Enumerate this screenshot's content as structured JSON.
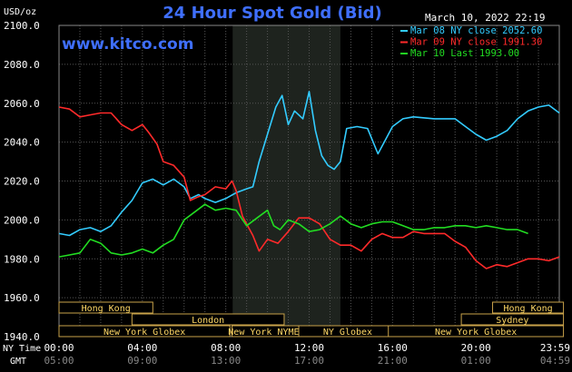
{
  "header": {
    "title": "24 Hour Spot Gold (Bid)",
    "unit": "USD/oz",
    "timestamp": "March 10, 2022 22:19",
    "site": "www.kitco.com"
  },
  "colors": {
    "background": "#000000",
    "plot_bg": "#000000",
    "grid": "#555555",
    "axis_text": "#ffffff",
    "title": "#3f6fff",
    "site": "#3f6fff",
    "highlight": "#1e231e",
    "session_box": "#c8a24a",
    "session_text": "#ffd866"
  },
  "time_labels": {
    "ny_label": "NY Time",
    "gmt_label": "GMT",
    "ny_ticks": [
      "00:00",
      "04:00",
      "08:00",
      "12:00",
      "16:00",
      "20:00",
      "23:59"
    ],
    "gmt_ticks": [
      "05:00",
      "09:00",
      "13:00",
      "17:00",
      "21:00",
      "01:00",
      "04:59"
    ]
  },
  "sessions": [
    {
      "name": "Hong Kong",
      "row": 0
    },
    {
      "name": "Hong Kong",
      "row": 0
    },
    {
      "name": "London",
      "row": 1
    },
    {
      "name": "Sydney",
      "row": 1
    },
    {
      "name": "New York Globex",
      "row": 2
    },
    {
      "name": "New York NYMEX",
      "row": 2
    },
    {
      "name": "NY Globex",
      "row": 2
    },
    {
      "name": "New York Globex",
      "row": 2
    }
  ],
  "chart_data": {
    "type": "line",
    "title": "24 Hour Spot Gold (Bid)",
    "ylabel": "USD/oz",
    "xlabel": "NY Time",
    "xlim_hours": [
      0,
      24
    ],
    "ylim": [
      1940,
      2100
    ],
    "yticks": [
      "2100.0",
      "2080.0",
      "2060.0",
      "2040.0",
      "2020.0",
      "2000.0",
      "1980.0",
      "1960.0",
      "1940.0"
    ],
    "grid": true,
    "legend_position": "top-right",
    "series": [
      {
        "name": "Mar 08 NY close 2052.60",
        "color": "#33ccff",
        "points": [
          [
            0,
            1993
          ],
          [
            0.5,
            1992
          ],
          [
            1,
            1995
          ],
          [
            1.5,
            1996
          ],
          [
            2,
            1994
          ],
          [
            2.5,
            1997
          ],
          [
            3,
            2004
          ],
          [
            3.5,
            2010
          ],
          [
            4,
            2019
          ],
          [
            4.5,
            2021
          ],
          [
            5,
            2018
          ],
          [
            5.5,
            2021
          ],
          [
            6,
            2017
          ],
          [
            6.3,
            2011
          ],
          [
            6.7,
            2013
          ],
          [
            7,
            2011
          ],
          [
            7.5,
            2009
          ],
          [
            8,
            2011
          ],
          [
            8.5,
            2014
          ],
          [
            9,
            2016
          ],
          [
            9.3,
            2017
          ],
          [
            9.6,
            2030
          ],
          [
            10,
            2044
          ],
          [
            10.4,
            2058
          ],
          [
            10.7,
            2064
          ],
          [
            11,
            2049
          ],
          [
            11.3,
            2056
          ],
          [
            11.7,
            2052
          ],
          [
            12,
            2066
          ],
          [
            12.3,
            2046
          ],
          [
            12.6,
            2033
          ],
          [
            12.9,
            2028
          ],
          [
            13.2,
            2026
          ],
          [
            13.5,
            2030
          ],
          [
            13.8,
            2047
          ],
          [
            14.3,
            2048
          ],
          [
            14.8,
            2047
          ],
          [
            15.3,
            2034
          ],
          [
            15.6,
            2040
          ],
          [
            16,
            2048
          ],
          [
            16.5,
            2052
          ],
          [
            17,
            2053
          ],
          [
            18,
            2052
          ],
          [
            19,
            2052
          ],
          [
            19.5,
            2048
          ],
          [
            20,
            2044
          ],
          [
            20.5,
            2041
          ],
          [
            21,
            2043
          ],
          [
            21.5,
            2046
          ],
          [
            22,
            2052
          ],
          [
            22.5,
            2056
          ],
          [
            23,
            2058
          ],
          [
            23.5,
            2059
          ],
          [
            24,
            2055
          ]
        ]
      },
      {
        "name": "Mar 09 NY close 1991.30",
        "color": "#ff2a2a",
        "points": [
          [
            0,
            2058
          ],
          [
            0.5,
            2057
          ],
          [
            1,
            2053
          ],
          [
            1.5,
            2054
          ],
          [
            2,
            2055
          ],
          [
            2.5,
            2055
          ],
          [
            3,
            2049
          ],
          [
            3.5,
            2046
          ],
          [
            4,
            2049
          ],
          [
            4.3,
            2045
          ],
          [
            4.7,
            2039
          ],
          [
            5,
            2030
          ],
          [
            5.5,
            2028
          ],
          [
            6,
            2022
          ],
          [
            6.3,
            2010
          ],
          [
            6.7,
            2012
          ],
          [
            7,
            2013
          ],
          [
            7.5,
            2017
          ],
          [
            8,
            2016
          ],
          [
            8.3,
            2020
          ],
          [
            8.5,
            2015
          ],
          [
            8.8,
            2002
          ],
          [
            9,
            1998
          ],
          [
            9.3,
            1992
          ],
          [
            9.6,
            1984
          ],
          [
            10,
            1990
          ],
          [
            10.5,
            1988
          ],
          [
            11,
            1994
          ],
          [
            11.5,
            2001
          ],
          [
            12,
            2001
          ],
          [
            12.5,
            1998
          ],
          [
            13,
            1990
          ],
          [
            13.5,
            1987
          ],
          [
            14,
            1987
          ],
          [
            14.5,
            1984
          ],
          [
            15,
            1990
          ],
          [
            15.5,
            1993
          ],
          [
            16,
            1991
          ],
          [
            16.5,
            1991
          ],
          [
            17,
            1994
          ],
          [
            17.5,
            1993
          ],
          [
            18,
            1993
          ],
          [
            18.5,
            1993
          ],
          [
            19,
            1989
          ],
          [
            19.5,
            1986
          ],
          [
            20,
            1979
          ],
          [
            20.5,
            1975
          ],
          [
            21,
            1977
          ],
          [
            21.5,
            1976
          ],
          [
            22,
            1978
          ],
          [
            22.5,
            1980
          ],
          [
            23,
            1980
          ],
          [
            23.5,
            1979
          ],
          [
            24,
            1981
          ]
        ]
      },
      {
        "name": "Mar 10 Last 1993.00",
        "color": "#22dd22",
        "points": [
          [
            0,
            1981
          ],
          [
            0.5,
            1982
          ],
          [
            1,
            1983
          ],
          [
            1.5,
            1990
          ],
          [
            2,
            1988
          ],
          [
            2.5,
            1983
          ],
          [
            3,
            1982
          ],
          [
            3.5,
            1983
          ],
          [
            4,
            1985
          ],
          [
            4.5,
            1983
          ],
          [
            5,
            1987
          ],
          [
            5.5,
            1990
          ],
          [
            6,
            2000
          ],
          [
            6.5,
            2004
          ],
          [
            7,
            2008
          ],
          [
            7.5,
            2005
          ],
          [
            8,
            2006
          ],
          [
            8.5,
            2005
          ],
          [
            9,
            1997
          ],
          [
            9.5,
            2001
          ],
          [
            10,
            2005
          ],
          [
            10.3,
            1997
          ],
          [
            10.6,
            1995
          ],
          [
            11,
            2000
          ],
          [
            11.5,
            1998
          ],
          [
            12,
            1994
          ],
          [
            12.5,
            1995
          ],
          [
            13,
            1998
          ],
          [
            13.5,
            2002
          ],
          [
            14,
            1998
          ],
          [
            14.5,
            1996
          ],
          [
            15,
            1998
          ],
          [
            15.5,
            1999
          ],
          [
            16,
            1999
          ],
          [
            16.5,
            1997
          ],
          [
            17,
            1995
          ],
          [
            17.5,
            1995
          ],
          [
            18,
            1996
          ],
          [
            18.5,
            1996
          ],
          [
            19,
            1997
          ],
          [
            19.5,
            1997
          ],
          [
            20,
            1996
          ],
          [
            20.5,
            1997
          ],
          [
            21,
            1996
          ],
          [
            21.5,
            1995
          ],
          [
            22,
            1995
          ],
          [
            22.5,
            1993
          ]
        ]
      }
    ]
  }
}
